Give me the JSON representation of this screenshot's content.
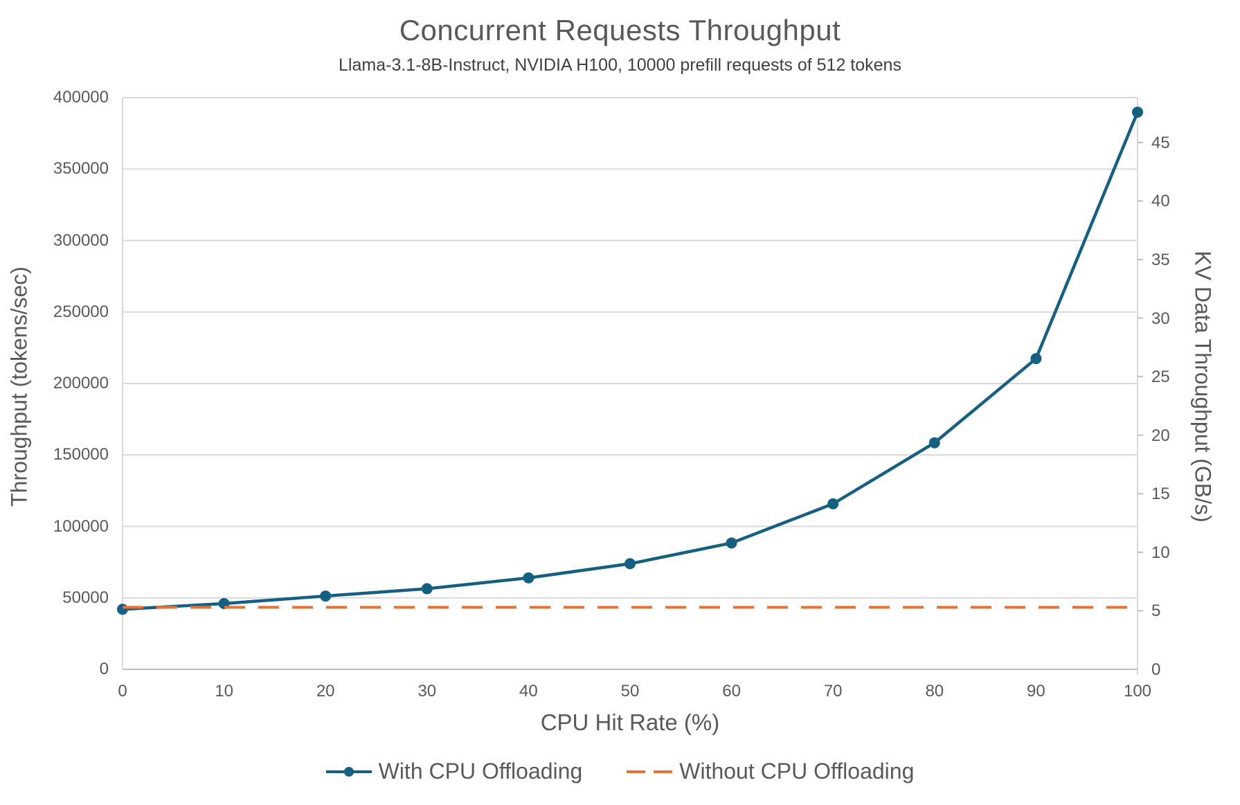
{
  "title": "Concurrent Requests Throughput",
  "subtitle": "Llama-3.1-8B-Instruct, NVIDIA H100, 10000 prefill requests of 512 tokens",
  "colors": {
    "with_offloading": "#156082",
    "without_offloading": "#E97132",
    "gridline": "#D9D9D9",
    "axis_line": "#BFBFBF",
    "text": "#595959"
  },
  "legend": {
    "with_label": "With CPU Offloading",
    "without_label": "Without CPU Offloading"
  },
  "chart_data": {
    "type": "line",
    "title": "Concurrent Requests Throughput",
    "subtitle": "Llama-3.1-8B-Instruct, NVIDIA H100, 10000 prefill requests of 512 tokens",
    "xlabel": "CPU Hit Rate (%)",
    "ylabel_left": "Throughput (tokens/sec)",
    "ylabel_right": "KV Data Throughput (GB/s)",
    "x": [
      0,
      10,
      20,
      30,
      40,
      50,
      60,
      70,
      80,
      90,
      100
    ],
    "x_ticks": [
      0,
      10,
      20,
      30,
      40,
      50,
      60,
      70,
      80,
      90,
      100
    ],
    "xlim": [
      0,
      100
    ],
    "ylim_left": [
      0,
      400000
    ],
    "y_ticks_left": [
      0,
      50000,
      100000,
      150000,
      200000,
      250000,
      300000,
      350000,
      400000
    ],
    "ylim_right": [
      0,
      48.83
    ],
    "y_ticks_right": [
      0,
      5,
      10,
      15,
      20,
      25,
      30,
      35,
      40,
      45
    ],
    "grid": "horizontal",
    "legend_position": "bottom",
    "series": [
      {
        "name": "With CPU Offloading",
        "axis": "left",
        "style": "solid",
        "marker": "circle",
        "color": "#156082",
        "values": [
          42000,
          46000,
          51300,
          56400,
          64000,
          73900,
          88400,
          115800,
          158500,
          217400,
          389800
        ],
        "kv_data_gbps": [
          5.1,
          5.6,
          6.3,
          6.9,
          7.8,
          9.0,
          10.8,
          14.1,
          19.3,
          26.5,
          47.6
        ]
      },
      {
        "name": "Without CPU Offloading",
        "axis": "left",
        "style": "dashed",
        "marker": "none",
        "color": "#E97132",
        "values": [
          43400,
          43400,
          43400,
          43400,
          43400,
          43400,
          43400,
          43400,
          43400,
          43400,
          43400
        ],
        "kv_data_gbps": [
          5.3,
          5.3,
          5.3,
          5.3,
          5.3,
          5.3,
          5.3,
          5.3,
          5.3,
          5.3,
          5.3
        ]
      }
    ]
  }
}
